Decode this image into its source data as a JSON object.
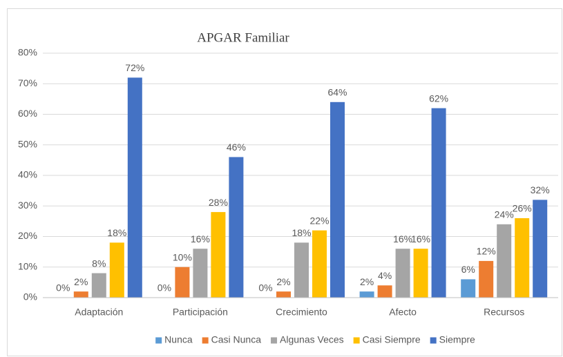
{
  "chart_data": {
    "type": "bar",
    "title": "APGAR Familiar",
    "categories": [
      "Adaptación",
      "Participación",
      "Crecimiento",
      "Afecto",
      "Recursos"
    ],
    "series": [
      {
        "name": "Nunca",
        "color": "#5b9bd5",
        "values": [
          0,
          0,
          0,
          2,
          6
        ],
        "value_labels": [
          "0%",
          "0%",
          "0%",
          "2%",
          "6%"
        ]
      },
      {
        "name": "Casi Nunca",
        "color": "#ed7d31",
        "values": [
          2,
          10,
          2,
          4,
          12
        ],
        "value_labels": [
          "2%",
          "10%",
          "2%",
          "4%",
          "12%"
        ]
      },
      {
        "name": "Algunas Veces",
        "color": "#a5a5a5",
        "values": [
          8,
          16,
          18,
          16,
          24
        ],
        "value_labels": [
          "8%",
          "16%",
          "18%",
          "16%",
          "24%"
        ]
      },
      {
        "name": "Casi Siempre",
        "color": "#ffc000",
        "values": [
          18,
          28,
          22,
          16,
          26
        ],
        "value_labels": [
          "18%",
          "28%",
          "22%",
          "16%",
          "26%"
        ]
      },
      {
        "name": "Siempre",
        "color": "#4472c4",
        "values": [
          72,
          46,
          64,
          62,
          32
        ],
        "value_labels": [
          "72%",
          "46%",
          "64%",
          "62%",
          "32%"
        ]
      }
    ],
    "ylim": [
      0,
      80
    ],
    "yticks": [
      {
        "value": 0,
        "label": "0%"
      },
      {
        "value": 10,
        "label": "10%"
      },
      {
        "value": 20,
        "label": "20%"
      },
      {
        "value": 30,
        "label": "30%"
      },
      {
        "value": 40,
        "label": "40%"
      },
      {
        "value": 50,
        "label": "50%"
      },
      {
        "value": 60,
        "label": "60%"
      },
      {
        "value": 70,
        "label": "70%"
      },
      {
        "value": 80,
        "label": "80%"
      }
    ],
    "grid": true,
    "legend": "bottom"
  }
}
